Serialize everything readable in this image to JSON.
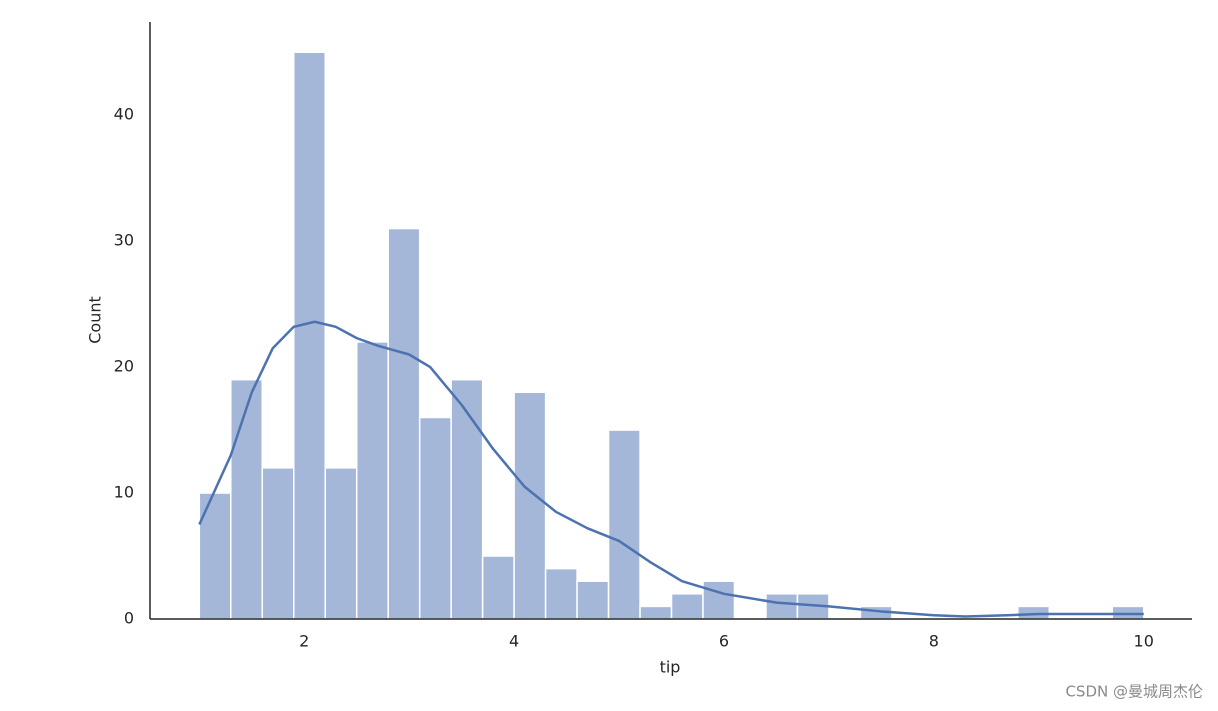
{
  "chart_data": {
    "type": "histogram",
    "xlabel": "tip",
    "ylabel": "Count",
    "bins": [
      1.0,
      1.3,
      1.6,
      1.9,
      2.2,
      2.5,
      2.8,
      3.1,
      3.4,
      3.7,
      4.0,
      4.3,
      4.6,
      4.9,
      5.2,
      5.5,
      5.8,
      6.1,
      6.4,
      6.7,
      7.0,
      7.3,
      7.6,
      7.9,
      8.2,
      8.5,
      8.8,
      9.1,
      9.4,
      9.7,
      10.0
    ],
    "values": [
      10,
      19,
      12,
      45,
      12,
      22,
      31,
      16,
      19,
      5,
      18,
      4,
      3,
      15,
      1,
      2,
      3,
      0,
      2,
      2,
      0,
      1,
      0,
      0,
      0,
      0,
      1,
      0,
      0,
      1
    ],
    "color": "#a4b7d9",
    "kde": {
      "color": "#4c72b0",
      "x": [
        1.0,
        1.3,
        1.5,
        1.7,
        1.9,
        2.1,
        2.3,
        2.5,
        2.7,
        3.0,
        3.2,
        3.5,
        3.8,
        4.1,
        4.4,
        4.7,
        5.0,
        5.3,
        5.6,
        6.0,
        6.5,
        7.0,
        7.5,
        8.0,
        8.3,
        8.7,
        9.0,
        9.5,
        10.0
      ],
      "y": [
        7.5,
        13,
        18,
        21.5,
        23.2,
        23.6,
        23.2,
        22.3,
        21.7,
        21,
        20,
        17,
        13.5,
        10.5,
        8.5,
        7.2,
        6.2,
        4.5,
        3,
        2,
        1.3,
        1,
        0.6,
        0.3,
        0.2,
        0.3,
        0.4,
        0.4,
        0.4
      ]
    },
    "xlim": [
      0.53,
      10.46
    ],
    "ylim": [
      0,
      47.4
    ],
    "xticks": [
      2,
      4,
      6,
      8,
      10
    ],
    "yticks": [
      0,
      10,
      20,
      30,
      40
    ],
    "grid": false
  },
  "watermark": "CSDN @曼城周杰伦"
}
